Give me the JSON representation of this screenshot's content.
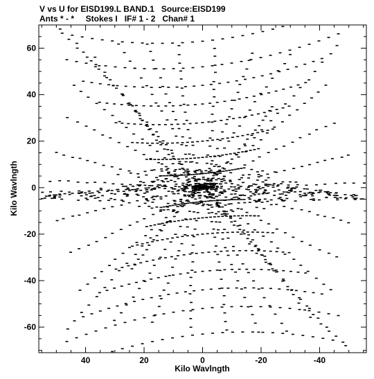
{
  "header": {
    "title_line1": "V vs U for EISD199.L BAND.1   Source:EISD199",
    "title_line2": "Ants * - *     Stokes I   IF# 1 - 2   Chan# 1"
  },
  "chart_data": {
    "type": "scatter",
    "title": "V vs U for EISD199.L BAND.1   Source:EISD199",
    "subtitle": "Ants * - *     Stokes I   IF# 1 - 2   Chan# 1",
    "xlabel": "Kilo Wavlngth",
    "ylabel": "Kilo Wavlngth",
    "xlim": [
      56,
      -56
    ],
    "ylim": [
      -71,
      70
    ],
    "x_reversed": true,
    "x_ticks": [
      40,
      20,
      0,
      -20,
      -40
    ],
    "x_tick_labels": [
      "40",
      "20",
      "0",
      "-20",
      "-40"
    ],
    "y_ticks": [
      60,
      40,
      20,
      0,
      -20,
      -40,
      -60
    ],
    "y_tick_labels": [
      "60",
      "40",
      "20",
      "0",
      "-20",
      "-40",
      "-60"
    ],
    "grid": false,
    "legend": "none",
    "marker_color": "#000000",
    "description_of_pattern": "uv-coverage: symmetric tracks of short dash segments radiating from origin",
    "track_endpoints": [
      {
        "u1": 49,
        "v1": 68,
        "u2": -49,
        "v2": -68
      },
      {
        "u1": 43,
        "v1": 62,
        "u2": -43,
        "v2": -62
      },
      {
        "u1": 37,
        "v1": 56,
        "u2": -37,
        "v2": -56
      },
      {
        "u1": 29,
        "v1": 62,
        "u2": -29,
        "v2": -62
      },
      {
        "u1": 19,
        "v1": 62,
        "u2": -19,
        "v2": -62
      },
      {
        "u1": 8,
        "v1": 61,
        "u2": -8,
        "v2": -61
      },
      {
        "u1": -4,
        "v1": 60,
        "u2": 4,
        "v2": -60
      },
      {
        "u1": -17,
        "v1": 58,
        "u2": 17,
        "v2": -58
      },
      {
        "u1": -30,
        "v1": 57,
        "u2": 30,
        "v2": -57
      },
      {
        "u1": -46,
        "v1": 61,
        "u2": 46,
        "v2": -61
      },
      {
        "u1": -42,
        "v1": 44,
        "u2": 42,
        "v2": -44
      },
      {
        "u1": -45,
        "v1": 28,
        "u2": 45,
        "v2": -28
      },
      {
        "u1": -50,
        "v1": 14,
        "u2": 50,
        "v2": -14
      },
      {
        "u1": -55,
        "v1": 2,
        "u2": 55,
        "v2": -2
      },
      {
        "u1": 50,
        "v1": 15,
        "u2": -50,
        "v2": -15
      },
      {
        "u1": 46,
        "v1": 30,
        "u2": -46,
        "v2": -30
      },
      {
        "u1": 44,
        "v1": 44,
        "u2": -44,
        "v2": -44
      },
      {
        "u1": 24,
        "v1": 35,
        "u2": -24,
        "v2": -35
      },
      {
        "u1": -24,
        "v1": 35,
        "u2": 24,
        "v2": -35
      },
      {
        "u1": 52,
        "v1": 3,
        "u2": -52,
        "v2": -3
      }
    ],
    "crossing_bands_v": [
      63,
      52,
      44,
      36,
      28,
      20,
      13,
      6,
      -6,
      -13,
      -20,
      -28,
      -36,
      -44,
      -52,
      -63
    ]
  }
}
